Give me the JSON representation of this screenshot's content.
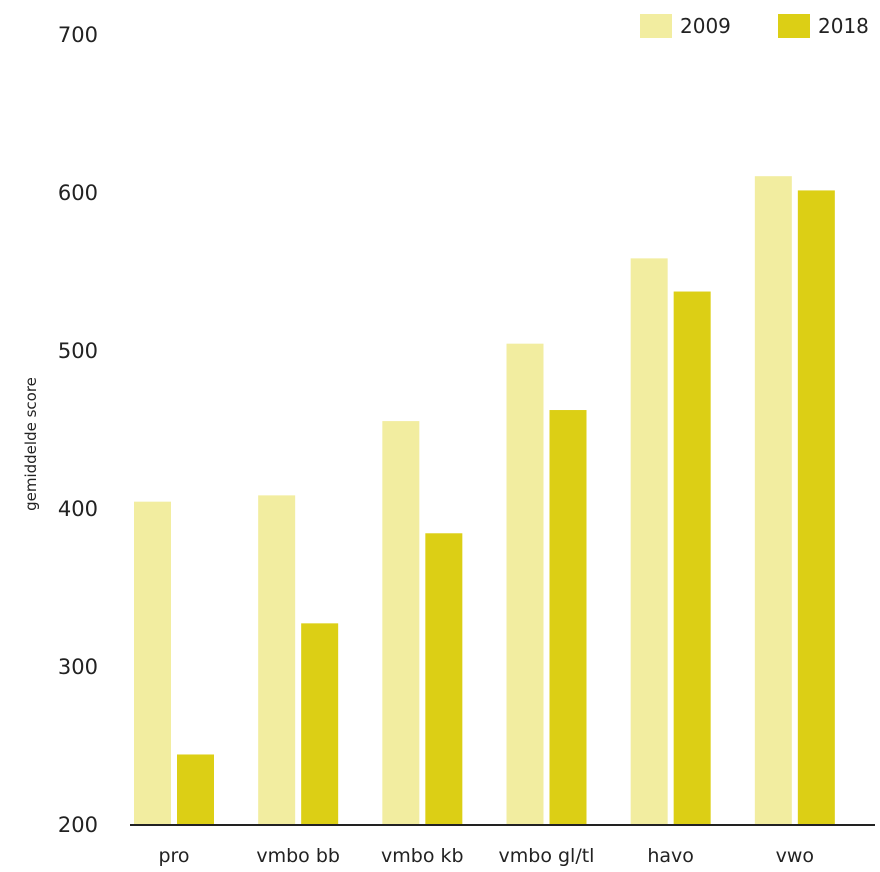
{
  "chart_data": {
    "type": "bar",
    "ylabel": "gemiddelde score",
    "ylim": [
      200,
      700
    ],
    "yticks": [
      200,
      300,
      400,
      500,
      600,
      700
    ],
    "categories": [
      "pro",
      "vmbo bb",
      "vmbo kb",
      "vmbo gl/tl",
      "havo",
      "vwo"
    ],
    "series": [
      {
        "name": "2009",
        "color": "#f2eda0",
        "values": [
          404,
          408,
          455,
          504,
          558,
          610
        ]
      },
      {
        "name": "2018",
        "color": "#dccf15",
        "values": [
          244,
          327,
          384,
          462,
          537,
          601
        ]
      }
    ],
    "legend_position": "top-right",
    "grid": false
  }
}
